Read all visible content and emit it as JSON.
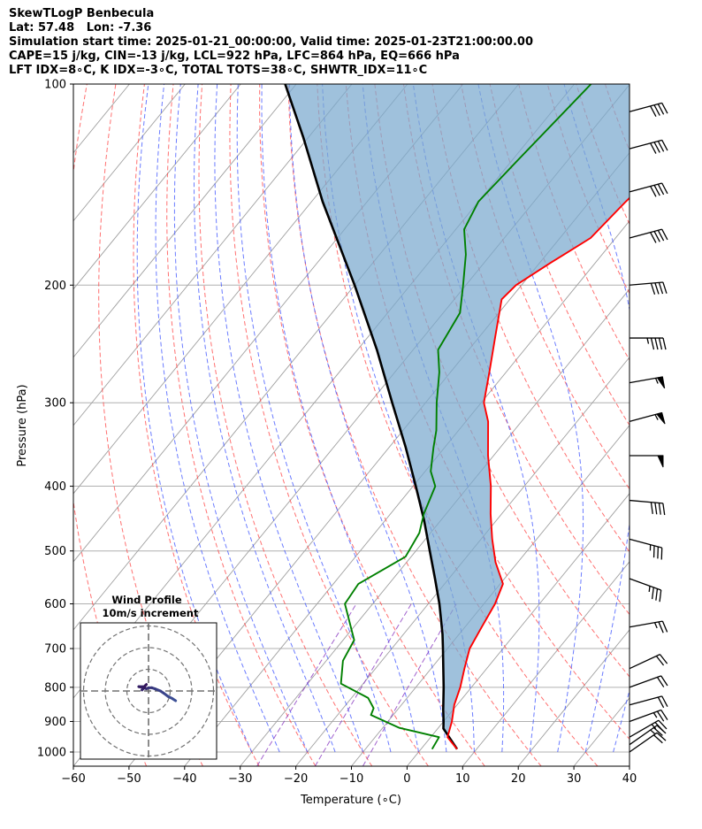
{
  "header": {
    "line1": "SkewTLogP Benbecula",
    "line2": "Lat: 57.48   Lon: -7.36",
    "line3": "Simulation start time: 2025-01-21_00:00:00, Valid time: 2025-01-23T21:00:00.00",
    "line4": "CAPE=15 j/kg, CIN=-13 j/kg, LCL=922 hPa, LFC=864 hPa, EQ=666 hPa",
    "line5": "LFT IDX=8∘C, K IDX=-3∘C, TOTAL TOTS=38∘C, SHWTR_IDX=11∘C"
  },
  "chart_data": {
    "type": "skewt-logp",
    "xlabel": "Temperature (∘C)",
    "ylabel": "Pressure (hPa)",
    "xlim": [
      -60,
      40
    ],
    "ylim": [
      1050,
      100
    ],
    "xticks": [
      -60,
      -50,
      -40,
      -30,
      -20,
      -10,
      0,
      10,
      20,
      30,
      40
    ],
    "yticks": [
      1000,
      900,
      800,
      700,
      600,
      500,
      400,
      300,
      200,
      100
    ],
    "grid": true,
    "colors": {
      "temperature": "#ff0000",
      "dewpoint": "#008000",
      "parcel": "#000000",
      "cape_fill": "#7aa9cf",
      "dry_adiabat": "#ff4040",
      "moist_adiabat": "#3a50ff",
      "mixing_ratio": "#8a3ac0",
      "isotherm": "#a0a0a0"
    },
    "temperature": [
      {
        "p": 990,
        "t": 6.5
      },
      {
        "p": 950,
        "t": 3.0
      },
      {
        "p": 900,
        "t": 1.5
      },
      {
        "p": 850,
        "t": -0.5
      },
      {
        "p": 800,
        "t": -2.0
      },
      {
        "p": 750,
        "t": -4.0
      },
      {
        "p": 700,
        "t": -6.0
      },
      {
        "p": 650,
        "t": -7.0
      },
      {
        "p": 600,
        "t": -8.0
      },
      {
        "p": 560,
        "t": -9.5
      },
      {
        "p": 520,
        "t": -14.0
      },
      {
        "p": 480,
        "t": -18.0
      },
      {
        "p": 440,
        "t": -22.0
      },
      {
        "p": 400,
        "t": -26.0
      },
      {
        "p": 360,
        "t": -31.0
      },
      {
        "p": 320,
        "t": -36.0
      },
      {
        "p": 300,
        "t": -39.5
      },
      {
        "p": 270,
        "t": -43.0
      },
      {
        "p": 240,
        "t": -47.0
      },
      {
        "p": 210,
        "t": -51.5
      },
      {
        "p": 200,
        "t": -51.0
      },
      {
        "p": 185,
        "t": -48.0
      },
      {
        "p": 170,
        "t": -44.5
      },
      {
        "p": 150,
        "t": -43.5
      },
      {
        "p": 130,
        "t": -42.0
      },
      {
        "p": 115,
        "t": -41.5
      },
      {
        "p": 100,
        "t": -41.0
      }
    ],
    "dewpoint": [
      {
        "p": 990,
        "t": 2.0
      },
      {
        "p": 950,
        "t": 1.5
      },
      {
        "p": 920,
        "t": -7.0
      },
      {
        "p": 880,
        "t": -14.0
      },
      {
        "p": 860,
        "t": -14.5
      },
      {
        "p": 830,
        "t": -17.0
      },
      {
        "p": 790,
        "t": -24.0
      },
      {
        "p": 730,
        "t": -27.0
      },
      {
        "p": 680,
        "t": -28.0
      },
      {
        "p": 600,
        "t": -35.0
      },
      {
        "p": 560,
        "t": -35.5
      },
      {
        "p": 510,
        "t": -31.0
      },
      {
        "p": 470,
        "t": -32.0
      },
      {
        "p": 440,
        "t": -34.0
      },
      {
        "p": 400,
        "t": -36.0
      },
      {
        "p": 380,
        "t": -39.0
      },
      {
        "p": 350,
        "t": -42.0
      },
      {
        "p": 330,
        "t": -44.0
      },
      {
        "p": 300,
        "t": -48.0
      },
      {
        "p": 270,
        "t": -52.0
      },
      {
        "p": 250,
        "t": -55.5
      },
      {
        "p": 220,
        "t": -57.0
      },
      {
        "p": 200,
        "t": -60.5
      },
      {
        "p": 180,
        "t": -64.5
      },
      {
        "p": 165,
        "t": -68.5
      },
      {
        "p": 150,
        "t": -70.0
      },
      {
        "p": 130,
        "t": -69.0
      },
      {
        "p": 100,
        "t": -67.0
      }
    ],
    "parcel_profile": [
      {
        "p": 990,
        "t": 6.5
      },
      {
        "p": 950,
        "t": 3.3
      },
      {
        "p": 922,
        "t": 1.0
      },
      {
        "p": 900,
        "t": 0.0
      },
      {
        "p": 864,
        "t": -1.8
      },
      {
        "p": 800,
        "t": -5.0
      },
      {
        "p": 750,
        "t": -7.8
      },
      {
        "p": 700,
        "t": -10.8
      },
      {
        "p": 666,
        "t": -13.0
      },
      {
        "p": 600,
        "t": -18.0
      },
      {
        "p": 550,
        "t": -22.5
      },
      {
        "p": 500,
        "t": -27.5
      },
      {
        "p": 450,
        "t": -33.0
      },
      {
        "p": 400,
        "t": -39.5
      },
      {
        "p": 350,
        "t": -47.0
      },
      {
        "p": 300,
        "t": -56.0
      },
      {
        "p": 250,
        "t": -66.5
      },
      {
        "p": 200,
        "t": -80.0
      },
      {
        "p": 150,
        "t": -98.0
      },
      {
        "p": 120,
        "t": -111.0
      },
      {
        "p": 100,
        "t": -122.0
      }
    ],
    "wind_barbs": [
      {
        "p": 1000,
        "speed_kt": 20,
        "dir": 235
      },
      {
        "p": 975,
        "speed_kt": 25,
        "dir": 235
      },
      {
        "p": 950,
        "speed_kt": 25,
        "dir": 240
      },
      {
        "p": 900,
        "speed_kt": 25,
        "dir": 250
      },
      {
        "p": 850,
        "speed_kt": 20,
        "dir": 255
      },
      {
        "p": 800,
        "speed_kt": 20,
        "dir": 250
      },
      {
        "p": 750,
        "speed_kt": 20,
        "dir": 245
      },
      {
        "p": 650,
        "speed_kt": 25,
        "dir": 260
      },
      {
        "p": 550,
        "speed_kt": 35,
        "dir": 290
      },
      {
        "p": 480,
        "speed_kt": 35,
        "dir": 285
      },
      {
        "p": 420,
        "speed_kt": 40,
        "dir": 275
      },
      {
        "p": 360,
        "speed_kt": 50,
        "dir": 270
      },
      {
        "p": 320,
        "speed_kt": 55,
        "dir": 255
      },
      {
        "p": 280,
        "speed_kt": 55,
        "dir": 260
      },
      {
        "p": 240,
        "speed_kt": 45,
        "dir": 270
      },
      {
        "p": 200,
        "speed_kt": 40,
        "dir": 265
      },
      {
        "p": 170,
        "speed_kt": 40,
        "dir": 255
      },
      {
        "p": 145,
        "speed_kt": 40,
        "dir": 255
      },
      {
        "p": 125,
        "speed_kt": 40,
        "dir": 255
      },
      {
        "p": 110,
        "speed_kt": 40,
        "dir": 255
      }
    ],
    "hodograph": {
      "title": "Wind Profile",
      "subtitle": "10m/s increment",
      "rings_ms": [
        10,
        20,
        30
      ],
      "u": [
        12.5,
        11.0,
        9.0,
        7.0,
        5.5,
        3.0,
        1.5,
        0.0,
        -1.0,
        -2.0,
        -3.0,
        -2.0,
        -4.5,
        -2.0,
        -1.5,
        -1.0
      ],
      "v": [
        -4.5,
        -3.5,
        -2.5,
        -1.0,
        0.0,
        1.0,
        1.5,
        1.5,
        1.0,
        1.5,
        0.5,
        2.0,
        2.0,
        1.5,
        2.5,
        3.0
      ]
    }
  }
}
